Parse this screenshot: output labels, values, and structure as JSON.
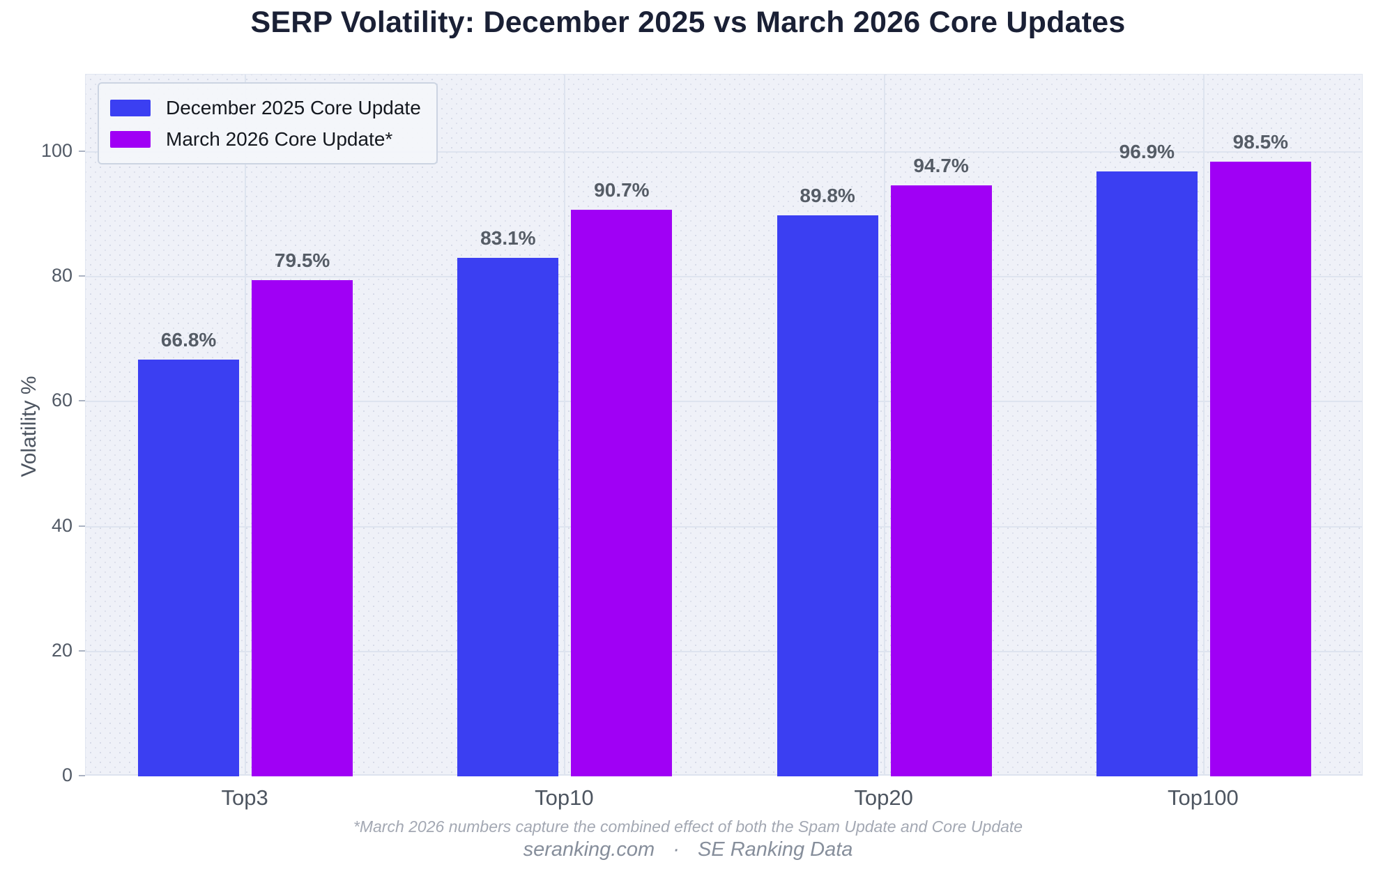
{
  "title": "SERP Volatility: December 2025 vs March 2026 Core Updates",
  "footnote": "*March 2026 numbers capture the combined effect of both the Spam Update and Core Update",
  "source": {
    "site": "seranking.com",
    "separator": "·",
    "label": "SE Ranking Data"
  },
  "theme": {
    "title_color": "#1a2035",
    "plot_background": "#eff1f8",
    "grid_color": "#dee4ef",
    "axis_text_color": "#4d5560",
    "bar_label_color": "#555c66",
    "footnote_color": "#a3a8b3",
    "source_color": "#868e9b"
  },
  "chart_data": {
    "type": "bar",
    "title": "SERP Volatility: December 2025 vs March 2026 Core Updates",
    "categories": [
      "Top3",
      "Top10",
      "Top20",
      "Top100"
    ],
    "series": [
      {
        "name": "December 2025 Core Update",
        "color": "#3b3ff2",
        "values": [
          66.8,
          83.1,
          89.8,
          96.9
        ]
      },
      {
        "name": "March 2026 Core Update*",
        "color": "#a000f5",
        "values": [
          79.5,
          90.7,
          94.7,
          98.5
        ]
      }
    ],
    "value_suffix": "%",
    "xlabel": "",
    "ylabel": "Volatility %",
    "yticks": [
      0,
      20,
      40,
      60,
      80,
      100
    ],
    "ylim": [
      0,
      112.4
    ],
    "grid": true,
    "legend_position": "upper-left"
  }
}
